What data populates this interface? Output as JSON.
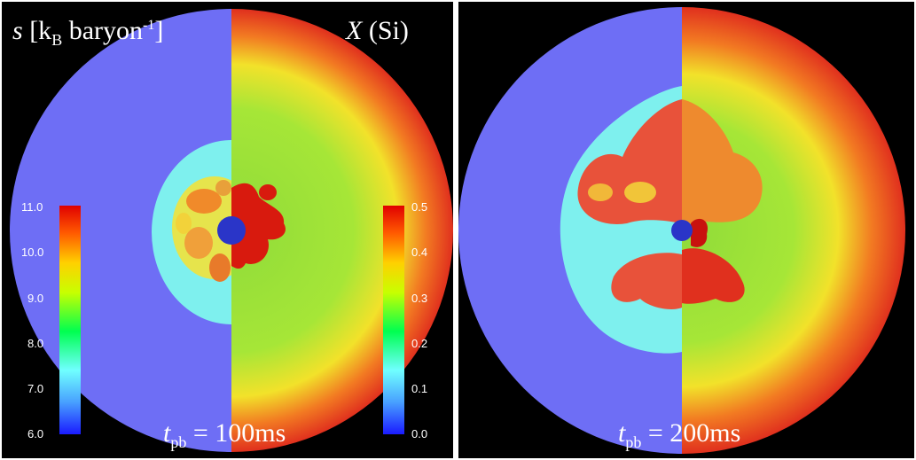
{
  "left_panel": {
    "entropy_label": {
      "symbol": "s",
      "unit_main": " [k",
      "unit_sub": "B",
      "unit_rest": " baryon",
      "unit_sup": "-1",
      "unit_close": "]"
    },
    "silicon_label": {
      "symbol": "X",
      "rest": " (Si)"
    },
    "time_label": {
      "symbol": "t",
      "sub": "pb",
      "value": " = 100ms"
    },
    "entropy_ticks": [
      "11.0",
      "10.0",
      "9.0",
      "8.0",
      "7.0",
      "6.0"
    ],
    "silicon_ticks": [
      "0.5",
      "0.4",
      "0.3",
      "0.2",
      "0.1",
      "0.0"
    ]
  },
  "right_panel": {
    "time_label": {
      "symbol": "t",
      "sub": "pb",
      "value": " = 200ms"
    }
  },
  "colors": {
    "background": "#000000",
    "outer_entropy": "#6e6ef5",
    "outer_silicon_edge": "#e63a1e",
    "silicon_mid": "#9ee33c",
    "plume_hot": "#e83a22",
    "shock_cyan": "#7ef0ee",
    "core_blue": "#2a35c8"
  }
}
